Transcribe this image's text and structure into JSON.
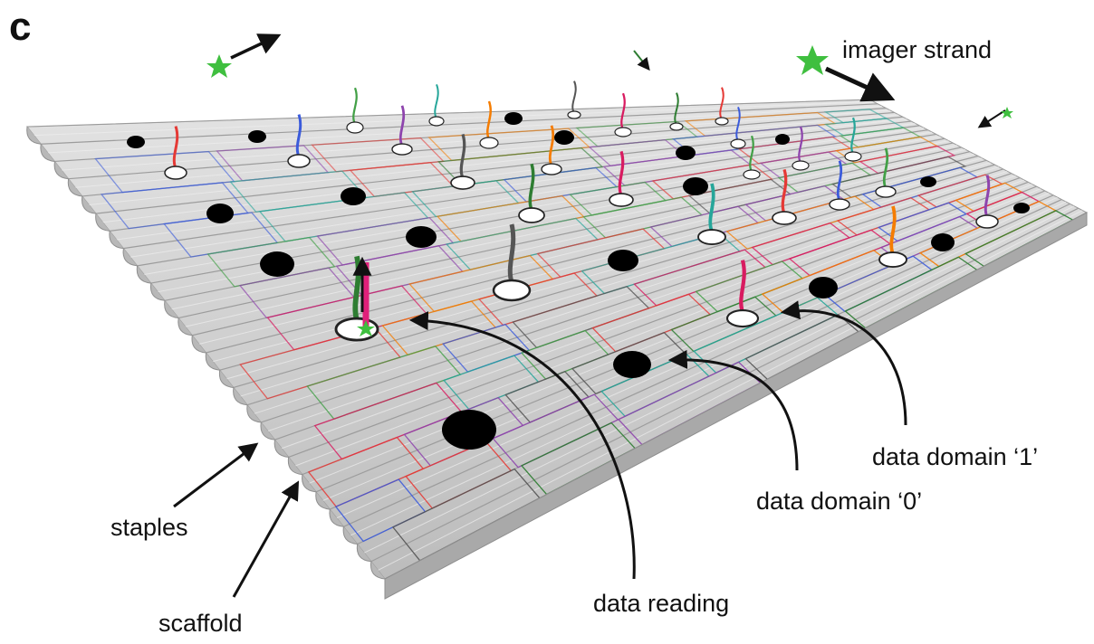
{
  "panel_letter": "c",
  "labels": {
    "imager_strand": "imager strand",
    "staples": "staples",
    "scaffold": "scaffold",
    "data_reading": "data reading",
    "data_domain_0": "data domain ‘0’",
    "data_domain_1": "data domain ‘1’"
  },
  "colors": {
    "surface": "#c9c9c9",
    "scaffold_edge": "#b5b5b5",
    "bit_zero": "#000000",
    "bit_one_ring": "#ffffff",
    "imager_star": "#3fbf3f",
    "reading_strand": "#e0207a",
    "arrow": "#111111",
    "staple_colors": [
      "#e53935",
      "#3b5bdb",
      "#43a047",
      "#8e44ad",
      "#26a69a",
      "#f57c00",
      "#555555",
      "#d81b60",
      "#2e7d32"
    ]
  }
}
